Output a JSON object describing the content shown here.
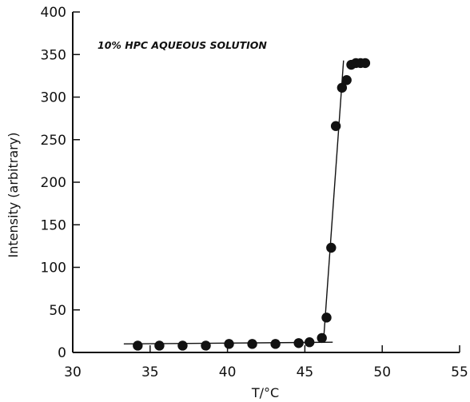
{
  "chart_data": {
    "type": "scatter",
    "title": "",
    "annotation": "10% HPC AQUEOUS SOLUTION",
    "xlabel": "T/°C",
    "ylabel": "Intensity (arbitrary)",
    "xlim": [
      30,
      55
    ],
    "ylim": [
      0,
      400
    ],
    "xticks": [
      30,
      35,
      40,
      45,
      50,
      55
    ],
    "yticks": [
      0,
      50,
      100,
      150,
      200,
      250,
      300,
      350,
      400
    ],
    "grid": false,
    "series": [
      {
        "points": [
          [
            34.2,
            8
          ],
          [
            35.6,
            8
          ],
          [
            37.1,
            8
          ],
          [
            38.6,
            8
          ],
          [
            40.1,
            10
          ],
          [
            41.6,
            10
          ],
          [
            43.1,
            10
          ],
          [
            44.6,
            11
          ],
          [
            45.3,
            12
          ],
          [
            46.1,
            17
          ],
          [
            46.4,
            41
          ],
          [
            46.7,
            123
          ],
          [
            47.0,
            266
          ],
          [
            47.4,
            311
          ],
          [
            47.7,
            320
          ],
          [
            48.0,
            338
          ],
          [
            48.3,
            340
          ],
          [
            48.6,
            340
          ],
          [
            48.9,
            340
          ]
        ]
      }
    ],
    "trend_lines": [
      {
        "x": [
          33.3,
          46.8
        ],
        "y": [
          10,
          12
        ]
      },
      {
        "x": [
          46.2,
          47.5
        ],
        "y": [
          12,
          343
        ]
      }
    ]
  }
}
